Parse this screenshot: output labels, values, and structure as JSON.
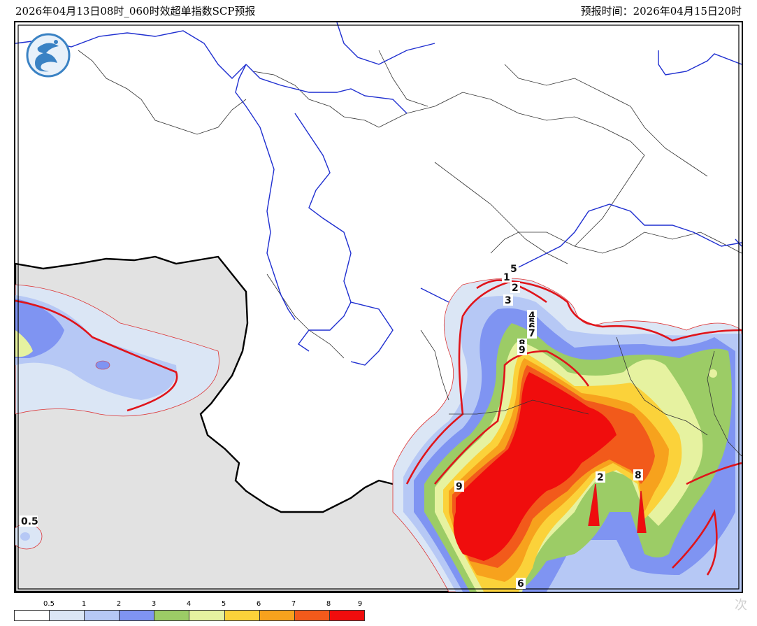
{
  "header": {
    "title": "2026年04月13日08时_060时效超单指数SCP预报",
    "forecast_time": "预报时间：2026年04月15日20时"
  },
  "map": {
    "contour_labels": [
      "5",
      "1",
      "2",
      "3",
      "4",
      "5",
      "6",
      "7",
      "8",
      "9",
      "9",
      "2",
      "8",
      "6",
      "0.5"
    ]
  },
  "legend": {
    "ticks": [
      "0.5",
      "1",
      "2",
      "3",
      "4",
      "5",
      "6",
      "7",
      "8",
      "9"
    ],
    "colors": [
      "#ffffff",
      "#dbe6f5",
      "#b6c8f5",
      "#7f94f2",
      "#9ccc66",
      "#e6f2a0",
      "#fbd23a",
      "#f7a21d",
      "#f25a1b",
      "#f00d0d"
    ]
  },
  "watermark": "次"
}
